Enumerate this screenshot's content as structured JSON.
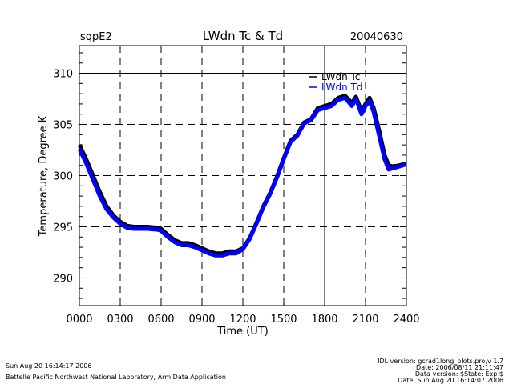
{
  "header": {
    "site": "sqpE2",
    "title": "LWdn Tc & Td",
    "date": "20040630"
  },
  "footer": {
    "left": [
      "Sun Aug 20 16:14:17 2006",
      "Battelle Pacific Northwest National Laboratory, Arm Data Application"
    ],
    "right": [
      "IDL version: gcrad1long_plots.pro,v 1.7",
      "Date: 2006/08/11 21:11:47",
      "Data version: $State: Exp $",
      "Date: Sun Aug 20 16:14:07 2006"
    ]
  },
  "chart_data": {
    "type": "line",
    "title": "LWdn Tc & Td",
    "xlabel": "Time (UT)",
    "ylabel": "Temperature, Degree K",
    "xlim": [
      0,
      24
    ],
    "ylim": [
      287.3,
      312.7
    ],
    "x_ticks": [
      "0000",
      "0300",
      "0600",
      "0900",
      "1200",
      "1500",
      "1800",
      "2100",
      "2400"
    ],
    "y_ticks": [
      "290",
      "295",
      "300",
      "305",
      "310"
    ],
    "grid": true,
    "legend": "top-right",
    "x": [
      0,
      0.5,
      1,
      1.5,
      2,
      2.5,
      3,
      3.5,
      4,
      5,
      5.8,
      6,
      6.5,
      7,
      7.5,
      8,
      8.5,
      9,
      9.5,
      10,
      10.5,
      11,
      11.5,
      12,
      12.5,
      13,
      13.5,
      14,
      14.5,
      15,
      15.5,
      16,
      16.5,
      17,
      17.5,
      18,
      18.5,
      19,
      19.5,
      20,
      20.3,
      20.7,
      21,
      21.3,
      21.6,
      22,
      22.4,
      22.7,
      23,
      23.5,
      24
    ],
    "series": [
      {
        "name": "LWdn Tc",
        "color": "#000000",
        "values": [
          303.0,
          301.6,
          300.0,
          298.4,
          297.0,
          296.1,
          295.5,
          295.1,
          295.0,
          295.0,
          294.9,
          294.8,
          294.2,
          293.7,
          293.4,
          293.4,
          293.2,
          292.9,
          292.6,
          292.4,
          292.4,
          292.6,
          292.6,
          292.9,
          293.9,
          295.4,
          297.0,
          298.3,
          299.9,
          301.7,
          303.4,
          304.0,
          305.2,
          305.5,
          306.6,
          306.8,
          307.0,
          307.6,
          307.8,
          307.1,
          307.7,
          306.3,
          307.0,
          307.6,
          306.6,
          304.4,
          302.0,
          301.0,
          300.9,
          301.0,
          301.2
        ]
      },
      {
        "name": "LWdn Td",
        "color": "#0000ff",
        "values": [
          302.6,
          301.2,
          299.6,
          298.0,
          296.7,
          295.9,
          295.3,
          294.9,
          294.8,
          294.8,
          294.7,
          294.6,
          294.0,
          293.5,
          293.2,
          293.2,
          293.0,
          292.7,
          292.4,
          292.2,
          292.2,
          292.4,
          292.4,
          292.8,
          293.8,
          295.3,
          296.9,
          298.2,
          299.8,
          301.6,
          303.3,
          303.9,
          305.1,
          305.4,
          306.4,
          306.6,
          306.8,
          307.4,
          307.6,
          306.8,
          307.5,
          306.0,
          306.8,
          307.3,
          306.2,
          303.9,
          301.6,
          300.6,
          300.7,
          300.9,
          301.1
        ]
      }
    ]
  }
}
